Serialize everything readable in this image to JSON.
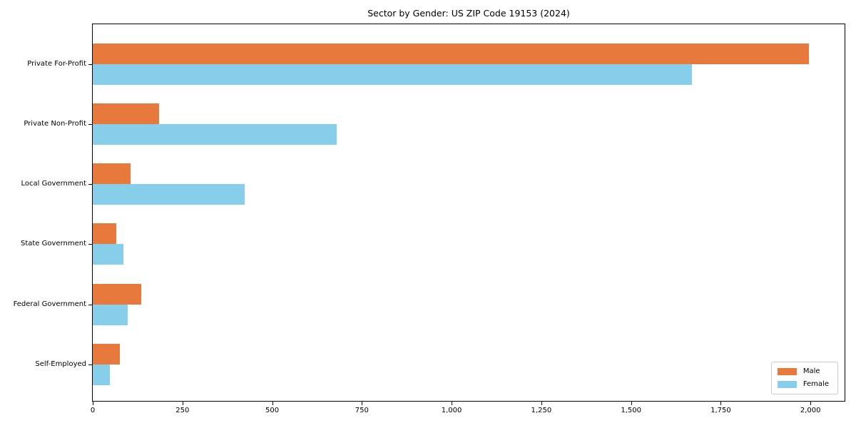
{
  "title": "Sector by Gender: US ZIP Code 19153 (2024)",
  "colors": {
    "male": "#E8793D",
    "female": "#87CEEB",
    "spine": "#000000",
    "legend_border": "#CCCCCC",
    "background": "#FFFFFF"
  },
  "chart_data": {
    "type": "bar",
    "orientation": "horizontal",
    "title": "Sector by Gender: US ZIP Code 19153 (2024)",
    "xlabel": "",
    "ylabel": "",
    "categories": [
      "Private For-Profit",
      "Private Non-Profit",
      "Local Government",
      "State Government",
      "Federal Government",
      "Self-Employed"
    ],
    "series": [
      {
        "name": "Male",
        "color": "#E8793D",
        "values": [
          1995,
          185,
          106,
          66,
          135,
          76
        ]
      },
      {
        "name": "Female",
        "color": "#87CEEB",
        "values": [
          1670,
          680,
          424,
          85,
          98,
          48
        ]
      }
    ],
    "xlim": [
      0,
      2095
    ],
    "xticks": [
      0,
      250,
      500,
      750,
      1000,
      1250,
      1500,
      1750,
      2000
    ],
    "xtick_labels": [
      "0",
      "250",
      "500",
      "750",
      "1,000",
      "1,250",
      "1,500",
      "1,750",
      "2,000"
    ],
    "grid": false,
    "legend": {
      "position": "lower right",
      "entries": [
        "Male",
        "Female"
      ]
    }
  }
}
